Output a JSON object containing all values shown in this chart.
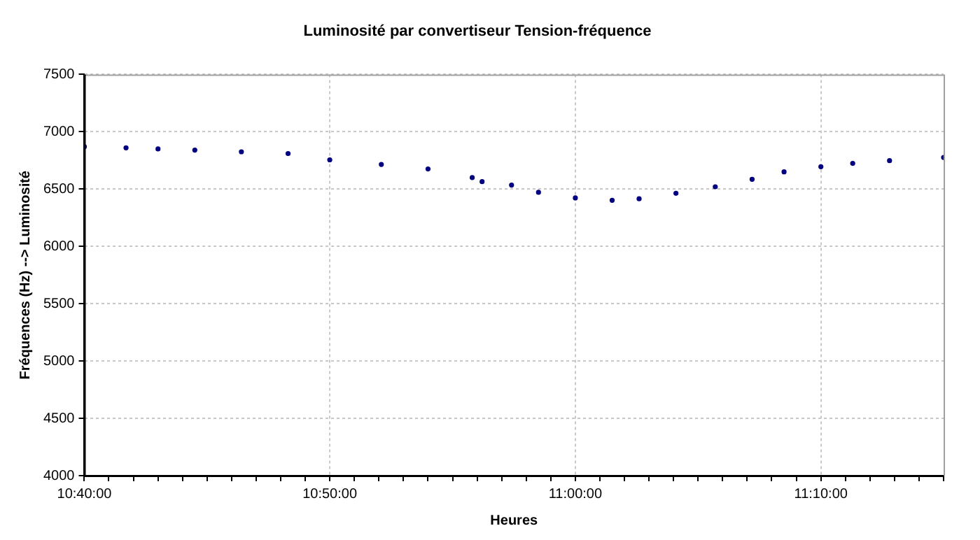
{
  "chart_data": {
    "type": "scatter",
    "title": "Luminosité par convertiseur Tension-fréquence",
    "xlabel": "Heures",
    "ylabel": "Fréquences (Hz) --> Luminosité",
    "x": [
      10.6667,
      10.695,
      10.7167,
      10.7417,
      10.7733,
      10.805,
      10.8333,
      10.8683,
      10.9,
      10.93,
      10.9367,
      10.9567,
      10.975,
      11.0,
      11.025,
      11.0433,
      11.0683,
      11.095,
      11.12,
      11.1417,
      11.1667,
      11.1883,
      11.2133,
      11.25
    ],
    "series": [
      {
        "color": "#000080",
        "values": [
          6870,
          6860,
          6850,
          6840,
          6825,
          6810,
          6755,
          6715,
          6675,
          6600,
          6565,
          6535,
          6472,
          6423,
          6402,
          6415,
          6463,
          6520,
          6585,
          6650,
          6695,
          6724,
          6748,
          6776
        ]
      }
    ],
    "xlim": [
      10.6667,
      11.25
    ],
    "xticks": [
      {
        "value": 10.6667,
        "label": "10:40:00"
      },
      {
        "value": 10.6833,
        "label": null
      },
      {
        "value": 10.7,
        "label": null
      },
      {
        "value": 10.7167,
        "label": null
      },
      {
        "value": 10.7333,
        "label": null
      },
      {
        "value": 10.75,
        "label": null
      },
      {
        "value": 10.7667,
        "label": null
      },
      {
        "value": 10.7833,
        "label": null
      },
      {
        "value": 10.8,
        "label": null
      },
      {
        "value": 10.8167,
        "label": null
      },
      {
        "value": 10.8333,
        "label": "10:50:00"
      },
      {
        "value": 10.85,
        "label": null
      },
      {
        "value": 10.8667,
        "label": null
      },
      {
        "value": 10.8833,
        "label": null
      },
      {
        "value": 10.9,
        "label": null
      },
      {
        "value": 10.9167,
        "label": null
      },
      {
        "value": 10.9333,
        "label": null
      },
      {
        "value": 10.95,
        "label": null
      },
      {
        "value": 10.9667,
        "label": null
      },
      {
        "value": 10.9833,
        "label": null
      },
      {
        "value": 11.0,
        "label": "11:00:00"
      },
      {
        "value": 11.0167,
        "label": null
      },
      {
        "value": 11.0333,
        "label": null
      },
      {
        "value": 11.05,
        "label": null
      },
      {
        "value": 11.0667,
        "label": null
      },
      {
        "value": 11.0833,
        "label": null
      },
      {
        "value": 11.1,
        "label": null
      },
      {
        "value": 11.1167,
        "label": null
      },
      {
        "value": 11.1333,
        "label": null
      },
      {
        "value": 11.15,
        "label": null
      },
      {
        "value": 11.1667,
        "label": "11:10:00"
      },
      {
        "value": 11.1833,
        "label": null
      },
      {
        "value": 11.2,
        "label": null
      },
      {
        "value": 11.2167,
        "label": null
      },
      {
        "value": 11.2333,
        "label": null
      },
      {
        "value": 11.25,
        "label": null
      }
    ],
    "ylim": [
      4000,
      7500
    ],
    "yticks": [
      4000,
      4500,
      5000,
      5500,
      6000,
      6500,
      7000,
      7500
    ],
    "grid": true,
    "marker": "circle"
  }
}
